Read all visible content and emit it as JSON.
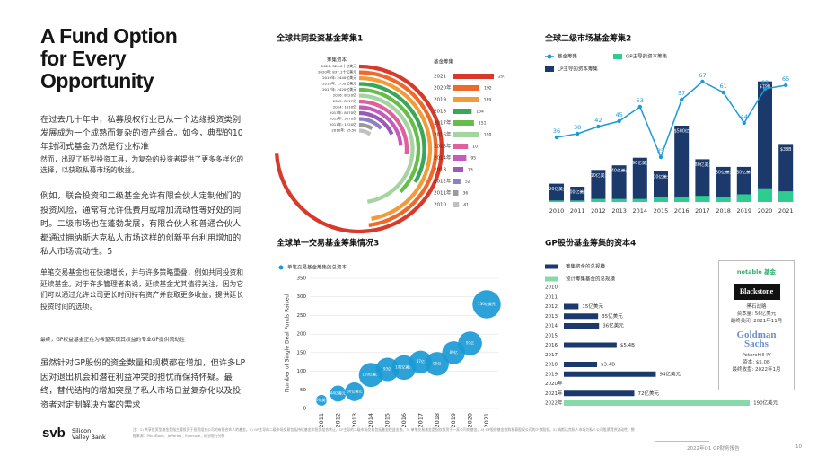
{
  "page": {
    "title": "A Fund Option for Every Opportunity",
    "paragraphs": [
      "在过去几十年中，私募股权行业已从一个边缘投资类别发展成为一个成熟而复杂的资产组合。如今，典型的10年封闭式基金仍然是行业标准",
      "然而，出现了新型投资工具，为复杂的投资者提供了更多多样化的选择，以获取私募市场的收益。",
      "例如，联合投资和二级基金允许有限合伙人定制他们的投资风险，通常有允许低费用或增加流动性等好处的同时。二级市场也在蓬勃发展，有限合伙人和普通合伙人都通过拥纳斯达克私人市场这样的创新平台利用增加的私人市场流动性。5",
      "单笔交易基金也在快速增长，并与许多策略重叠，例如共同投资和延续基金。对于许多管理者来说，延续基金尤其值得关注，因为它们可以通过允许公司更长时间持有资产并获取更多收益，提供延长投资时间的选项。",
      "最终，GP权益基金正在为希望实现其权益的专业GP提供流动性",
      "虽然针对GP股份的资金数量和规模都在增加，但许多LP因对退出机会和潜在利益冲突的担忧而保持怀疑。最终，替代结构的增加突显了私人市场日益复杂化以及投资者对定制解决方案的需求"
    ],
    "notable": {
      "heading": "notable 基金",
      "funds": [
        {
          "logo": "Blackstone",
          "lines": [
            "黑石战略",
            "资本量: 56亿美元",
            "最终关闭: 2021年11月"
          ]
        },
        {
          "logo": "Goldman Sachs",
          "lines": [
            "Petershill IV",
            "资本: $5.0B",
            "最终收盘: 2022年1月"
          ]
        }
      ]
    },
    "footnote": "注：1) 共享投资型基金是指主要投资于投资组合公司的有限合伙人的基金。2) GP主导的二级市场交易包括持续基金和投资组合转让，LP主导的二级市场交易包括基金权益出售。3) 单笔交易基金是指仅投资于一家公司的基金。4) GP股份基金收购私募股权公司的少数股权。5) 纳斯达克私人市场为私人公司股票提供流动性。数据来源：PitchBook、Jefferies、Evercore、硅谷银行分析",
    "logo": {
      "mark": "svb",
      "name": "Silicon Valley Bank"
    },
    "report": "2022年Q1 GP财务报告",
    "page_number": "10"
  },
  "chart_data": [
    {
      "type": "radial-bar",
      "title": "全球共同投资基金筹集1",
      "radial_label": "筹集资本",
      "list_label": "基金筹集",
      "categories": [
        "2021",
        "2020年",
        "2019",
        "2018",
        "2017年",
        "2016年",
        "2015年",
        "2014年",
        "2013",
        "2012年",
        "2011年",
        "2010"
      ],
      "values": [
        297,
        192,
        189,
        134,
        151,
        190,
        107,
        95,
        73,
        52,
        36,
        41
      ],
      "colors": [
        "#d8392b",
        "#ee6a2c",
        "#f39a3b",
        "#3aa657",
        "#67bd4b",
        "#a4d4a0",
        "#e05f9c",
        "#c45cb9",
        "#9a5bb5",
        "#8f7fc4",
        "#9a9a9a",
        "#c0c0c0"
      ],
      "arc_labels": [
        "2021: 820.0十亿美元",
        "2020年: 837.1十亿美元",
        "2019年: 2440亿美元",
        "2018年: 1750亿美元",
        "2017年: 2420亿美元",
        "2016: 8220亿",
        "2015: 8217亿",
        "2014: 1610亿",
        "2013年: 8870亿",
        "2012年: 3870亿",
        "2011年: 1220亿",
        "2010年: $5.5B"
      ]
    },
    {
      "type": "bar-line",
      "title": "全球二级市场基金筹集2",
      "categories": [
        "2010",
        "2011",
        "2012",
        "2013",
        "2014",
        "2015",
        "2016",
        "2017",
        "2018",
        "2019",
        "2020",
        "2021"
      ],
      "series": [
        {
          "name": "基金筹集",
          "type": "line",
          "axis": "y2",
          "color": "#1a9ad6",
          "values": [
            36,
            38,
            42,
            45,
            53,
            25,
            57,
            67,
            61,
            44,
            63,
            65
          ]
        },
        {
          "name": "GP主导的资本筹集",
          "type": "bar",
          "color": "#2ecc8f",
          "values": [
            1,
            1,
            2,
            2,
            2,
            3,
            3,
            4,
            3,
            5,
            9,
            7
          ]
        },
        {
          "name": "LP主导的资本筹集",
          "type": "bar",
          "color": "#1b3a6b",
          "values": [
            12,
            10,
            21,
            24,
            29,
            20,
            50,
            28,
            23,
            23,
            79,
            38
          ],
          "value_labels": [
            "120亿美元",
            "100亿美元",
            "210亿美元",
            "240亿美元",
            "290亿美元",
            "200亿美元",
            "$500亿",
            "280亿美元",
            "230亿美元",
            "230亿美元",
            "$79B",
            "$38B"
          ]
        }
      ],
      "ylim": [
        0,
        80
      ],
      "y2lim": [
        0,
        100
      ]
    },
    {
      "type": "bubble",
      "title": "全球单一交易基金筹集情况3",
      "y_label": "Number of Single Deal Funds Raised",
      "categories": [
        "2011",
        "2012",
        "2013",
        "2014",
        "2015",
        "2016",
        "2017",
        "2018",
        "2019",
        "2020",
        "2021"
      ],
      "series": [
        {
          "name": "单笔交易基金筹集的总资本",
          "color": "#1a9ad6",
          "values": [
            22,
            40,
            45,
            90,
            105,
            110,
            125,
            120,
            150,
            175,
            280
          ],
          "sizes": [
            20,
            44,
            60,
            100,
            93,
            102,
            87,
            95,
            89,
            97,
            136
          ],
          "size_labels": [
            "20亿美元",
            "44亿美元",
            "60亿美元",
            "100亿美元",
            "93亿",
            "102亿美元",
            "87亿",
            "95亿",
            "89亿",
            "97亿",
            "136亿美元"
          ]
        }
      ],
      "ylim": [
        0,
        350
      ],
      "yticks": [
        0,
        50,
        100,
        150,
        200,
        250,
        300,
        350
      ],
      "grid": true
    },
    {
      "type": "hbar",
      "title": "GP股份基金筹集的资本4",
      "categories": [
        "2010",
        "2011",
        "2012",
        "2013",
        "2014",
        "2015",
        "2016",
        "2017",
        "2018",
        "2019",
        "2020年",
        "2021年",
        "2022年"
      ],
      "series": [
        {
          "name": "筹集资金的总规模",
          "color": "#1b3a6b",
          "values": [
            null,
            null,
            15,
            35,
            36,
            null,
            54,
            null,
            34,
            94,
            null,
            72,
            null
          ],
          "value_labels": [
            null,
            null,
            "15亿美元",
            "35亿美元",
            "36亿美元",
            null,
            "$5.4B",
            null,
            "$3.4B",
            "94亿美元",
            null,
            "72亿美元",
            null
          ]
        },
        {
          "name": "预计筹集基金的总规模",
          "color": "#86d9a9",
          "values": [
            null,
            null,
            null,
            null,
            null,
            null,
            null,
            null,
            null,
            null,
            null,
            null,
            190
          ],
          "value_labels": [
            null,
            null,
            null,
            null,
            null,
            null,
            null,
            null,
            null,
            null,
            null,
            null,
            "190亿美元"
          ]
        }
      ],
      "xlim": [
        0,
        200
      ]
    }
  ]
}
